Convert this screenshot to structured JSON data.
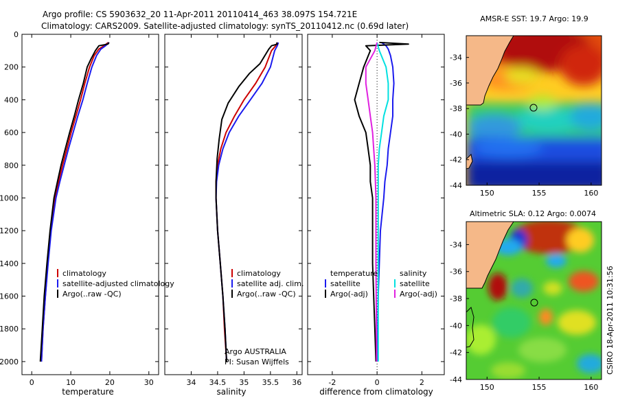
{
  "header": {
    "line1": "Argo profile: CS 5903632_20 11-Apr-2011 20110414_463 38.097S 154.721E",
    "line2": "Climatology: CARS2009. Satellite-adjusted climatology: synTS_20110412.nc (0.69d later)"
  },
  "side_label": "CSIRO 18-Apr-2011 10:31:56",
  "credit": {
    "line1": "Argo AUSTRALIA",
    "line2": "PI: Susan Wijffels"
  },
  "colors": {
    "climatology": "#cc0000",
    "satellite": "#1a1aee",
    "argo": "#000000",
    "salinity_sat": "#00e0e0",
    "salinity_argo": "#e020e0",
    "land": "#f5b888"
  },
  "chart_data": [
    {
      "type": "line",
      "name": "temperature-profile",
      "xlabel": "temperature",
      "ylabel": "",
      "xlim": [
        -2.5,
        32.5
      ],
      "ylim": [
        0,
        2080
      ],
      "x_ticks": [
        0,
        10,
        20,
        30
      ],
      "y_ticks": [
        0,
        200,
        400,
        600,
        800,
        1000,
        1200,
        1400,
        1600,
        1800,
        2000
      ],
      "legend": [
        "climatology",
        "satellite-adjusted climatology",
        "Argo(..raw -QC)"
      ],
      "series": [
        {
          "name": "climatology",
          "color": "#cc0000",
          "points": [
            [
              19.6,
              50
            ],
            [
              18.5,
              70
            ],
            [
              17.2,
              90
            ],
            [
              16,
              130
            ],
            [
              14.8,
              200
            ],
            [
              13.6,
              300
            ],
            [
              12.5,
              400
            ],
            [
              11.3,
              500
            ],
            [
              10.1,
              600
            ],
            [
              9,
              700
            ],
            [
              7.9,
              800
            ],
            [
              6.9,
              900
            ],
            [
              5.9,
              1000
            ],
            [
              4.9,
              1200
            ],
            [
              4.1,
              1400
            ],
            [
              3.5,
              1600
            ],
            [
              2.9,
              1800
            ],
            [
              2.5,
              2000
            ]
          ]
        },
        {
          "name": "satellite-adjusted climatology",
          "color": "#1a1aee",
          "points": [
            [
              19.8,
              50
            ],
            [
              18.9,
              70
            ],
            [
              17.7,
              90
            ],
            [
              16.6,
              130
            ],
            [
              15.4,
              200
            ],
            [
              14.2,
              300
            ],
            [
              13.1,
              400
            ],
            [
              11.8,
              500
            ],
            [
              10.6,
              600
            ],
            [
              9.4,
              700
            ],
            [
              8.3,
              800
            ],
            [
              7.2,
              900
            ],
            [
              6.2,
              1000
            ],
            [
              5,
              1200
            ],
            [
              4.2,
              1400
            ],
            [
              3.5,
              1600
            ],
            [
              2.9,
              1800
            ],
            [
              2.5,
              2000
            ]
          ]
        },
        {
          "name": "Argo(..raw -QC)",
          "color": "#000000",
          "points": [
            [
              19.8,
              50
            ],
            [
              19.5,
              60
            ],
            [
              17.2,
              70
            ],
            [
              16.3,
              100
            ],
            [
              15.2,
              150
            ],
            [
              14.2,
              200
            ],
            [
              13.2,
              300
            ],
            [
              12,
              400
            ],
            [
              10.9,
              500
            ],
            [
              9.7,
              600
            ],
            [
              8.6,
              700
            ],
            [
              7.5,
              800
            ],
            [
              6.6,
              900
            ],
            [
              5.7,
              1000
            ],
            [
              4.7,
              1200
            ],
            [
              3.9,
              1400
            ],
            [
              3.2,
              1600
            ],
            [
              2.7,
              1800
            ],
            [
              2.2,
              2000
            ]
          ]
        }
      ]
    },
    {
      "type": "line",
      "name": "salinity-profile",
      "xlabel": "salinity",
      "ylabel": "",
      "xlim": [
        33.5,
        36.1
      ],
      "ylim": [
        0,
        2080
      ],
      "x_ticks": [
        34,
        34.5,
        35,
        35.5,
        36
      ],
      "legend": [
        "climatology",
        "satellite adj. clim.",
        "Argo(..raw -QC)"
      ],
      "series": [
        {
          "name": "climatology",
          "color": "#cc0000",
          "points": [
            [
              35.63,
              50
            ],
            [
              35.6,
              70
            ],
            [
              35.52,
              100
            ],
            [
              35.4,
              200
            ],
            [
              35.22,
              300
            ],
            [
              35,
              400
            ],
            [
              34.82,
              500
            ],
            [
              34.66,
              600
            ],
            [
              34.56,
              700
            ],
            [
              34.5,
              800
            ],
            [
              34.47,
              900
            ],
            [
              34.47,
              1000
            ],
            [
              34.5,
              1200
            ],
            [
              34.55,
              1400
            ],
            [
              34.6,
              1600
            ],
            [
              34.63,
              1800
            ],
            [
              34.67,
              2000
            ]
          ]
        },
        {
          "name": "satellite adj. clim.",
          "color": "#1a1aee",
          "points": [
            [
              35.65,
              50
            ],
            [
              35.63,
              70
            ],
            [
              35.58,
              100
            ],
            [
              35.5,
              200
            ],
            [
              35.34,
              300
            ],
            [
              35.12,
              400
            ],
            [
              34.9,
              500
            ],
            [
              34.72,
              600
            ],
            [
              34.6,
              700
            ],
            [
              34.52,
              800
            ],
            [
              34.48,
              900
            ],
            [
              34.47,
              1000
            ],
            [
              34.5,
              1200
            ],
            [
              34.55,
              1400
            ],
            [
              34.6,
              1600
            ],
            [
              34.64,
              1800
            ],
            [
              34.67,
              2000
            ]
          ]
        },
        {
          "name": "Argo(..raw -QC)",
          "color": "#000000",
          "points": [
            [
              35.62,
              50
            ],
            [
              35.63,
              60
            ],
            [
              35.52,
              70
            ],
            [
              35.47,
              90
            ],
            [
              35.3,
              180
            ],
            [
              35.1,
              240
            ],
            [
              34.9,
              320
            ],
            [
              34.7,
              420
            ],
            [
              34.58,
              520
            ],
            [
              34.53,
              640
            ],
            [
              34.49,
              760
            ],
            [
              34.47,
              900
            ],
            [
              34.47,
              1000
            ],
            [
              34.5,
              1200
            ],
            [
              34.55,
              1400
            ],
            [
              34.6,
              1600
            ],
            [
              34.64,
              1800
            ],
            [
              34.67,
              2000
            ]
          ]
        }
      ]
    },
    {
      "type": "line",
      "name": "difference-profile",
      "xlabel": "difference from climatology",
      "ylabel": "",
      "xlim": [
        -3.1,
        3.0
      ],
      "ylim": [
        0,
        2080
      ],
      "x_ticks": [
        -2,
        0,
        2
      ],
      "legend_temperature_title": "temperature",
      "legend_temperature": [
        "satellite",
        "Argo(-adj)"
      ],
      "legend_salinity_title": "salinity",
      "legend_salinity": [
        "satellite",
        "Argo(-adj)"
      ],
      "series": [
        {
          "name": "temperature satellite",
          "color": "#1a1aee",
          "points": [
            [
              0.2,
              50
            ],
            [
              0.4,
              70
            ],
            [
              0.5,
              90
            ],
            [
              0.6,
              130
            ],
            [
              0.7,
              200
            ],
            [
              0.75,
              300
            ],
            [
              0.7,
              400
            ],
            [
              0.7,
              500
            ],
            [
              0.6,
              600
            ],
            [
              0.5,
              700
            ],
            [
              0.45,
              800
            ],
            [
              0.35,
              900
            ],
            [
              0.3,
              1000
            ],
            [
              0.15,
              1200
            ],
            [
              0.1,
              1400
            ],
            [
              0.05,
              1600
            ],
            [
              0.03,
              1800
            ],
            [
              0.02,
              2000
            ]
          ]
        },
        {
          "name": "temperature Argo(-adj)",
          "color": "#000000",
          "points": [
            [
              0.1,
              50
            ],
            [
              1.4,
              60
            ],
            [
              -0.5,
              70
            ],
            [
              -0.3,
              100
            ],
            [
              -0.6,
              200
            ],
            [
              -0.8,
              300
            ],
            [
              -1,
              400
            ],
            [
              -0.8,
              500
            ],
            [
              -0.5,
              600
            ],
            [
              -0.4,
              700
            ],
            [
              -0.3,
              800
            ],
            [
              -0.3,
              900
            ],
            [
              -0.2,
              1000
            ],
            [
              -0.2,
              1200
            ],
            [
              -0.2,
              1400
            ],
            [
              -0.15,
              1600
            ],
            [
              -0.1,
              1800
            ],
            [
              -0.05,
              2000
            ]
          ]
        },
        {
          "name": "salinity satellite",
          "color": "#00e0e0",
          "points": [
            [
              0,
              50
            ],
            [
              0.1,
              100
            ],
            [
              0.4,
              200
            ],
            [
              0.5,
              300
            ],
            [
              0.5,
              400
            ],
            [
              0.3,
              500
            ],
            [
              0.2,
              600
            ],
            [
              0.1,
              700
            ],
            [
              0.05,
              800
            ],
            [
              0.05,
              1000
            ],
            [
              0.05,
              1400
            ],
            [
              0.05,
              1800
            ],
            [
              0.05,
              2000
            ]
          ]
        },
        {
          "name": "salinity Argo(-adj)",
          "color": "#e020e0",
          "points": [
            [
              0,
              50
            ],
            [
              -0.1,
              100
            ],
            [
              -0.5,
              200
            ],
            [
              -0.5,
              300
            ],
            [
              -0.4,
              400
            ],
            [
              -0.3,
              500
            ],
            [
              -0.2,
              600
            ],
            [
              -0.15,
              700
            ],
            [
              -0.1,
              800
            ],
            [
              -0.05,
              1000
            ],
            [
              -0.05,
              1400
            ],
            [
              -0.03,
              1800
            ],
            [
              -0.02,
              2000
            ]
          ]
        }
      ]
    },
    {
      "type": "heatmap",
      "name": "amsre-sst-map",
      "title": "AMSR-E SST: 19.7 Argo: 19.9",
      "xlim": [
        148,
        161
      ],
      "ylim": [
        -44,
        -32.3
      ],
      "x_ticks": [
        150,
        155,
        160
      ],
      "y_ticks": [
        -34,
        -36,
        -38,
        -40,
        -42,
        -44
      ],
      "x_tick_labels": [
        "150",
        "155",
        "160"
      ],
      "y_tick_labels": [
        "-34",
        "-36",
        "-38",
        "-40",
        "-42",
        "-44"
      ],
      "argo_position": [
        154.721,
        -38.097
      ]
    },
    {
      "type": "heatmap",
      "name": "altimetric-sla-map",
      "title": "Altimetric SLA: 0.12 Argo: 0.0074",
      "xlim": [
        148,
        161
      ],
      "ylim": [
        -44,
        -32.3
      ],
      "x_ticks": [
        150,
        155,
        160
      ],
      "y_ticks": [
        -34,
        -36,
        -38,
        -40,
        -42,
        -44
      ],
      "x_tick_labels": [
        "150",
        "155",
        "160"
      ],
      "y_tick_labels": [
        "-34",
        "-36",
        "-38",
        "-40",
        "-42",
        "-44"
      ],
      "argo_position": [
        154.721,
        -38.097
      ]
    }
  ]
}
